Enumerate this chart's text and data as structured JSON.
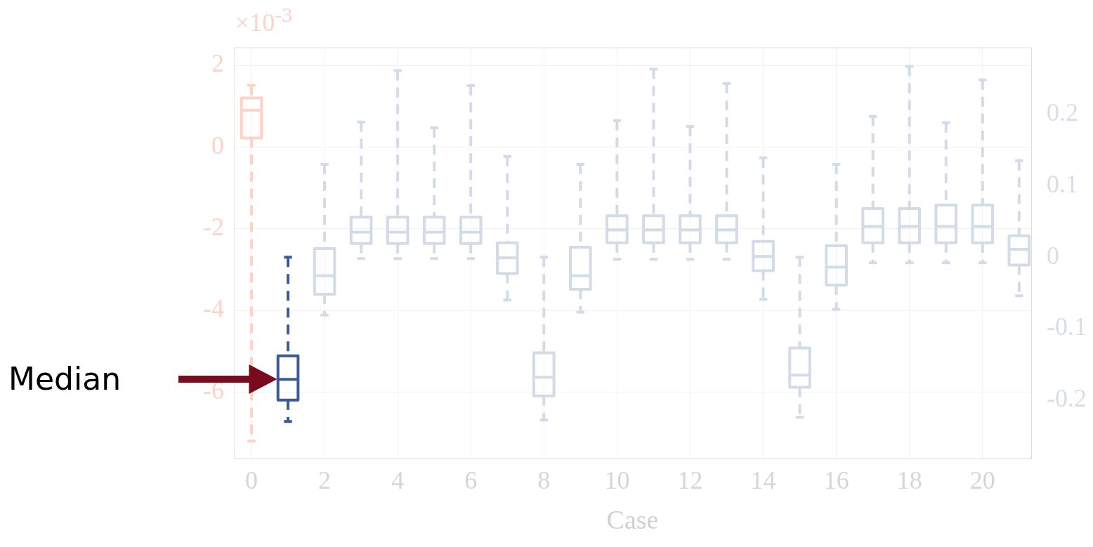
{
  "chart_data": {
    "type": "box",
    "xlabel": "Case",
    "xlim": [
      -0.48,
      21.33
    ],
    "xticks": [
      0,
      2,
      4,
      6,
      8,
      10,
      12,
      14,
      16,
      18,
      20
    ],
    "ylim": [
      -7.63,
      2.43
    ],
    "yticks": [
      -6,
      -4,
      -2,
      0,
      2
    ],
    "y2lim": [
      -0.282,
      0.293
    ],
    "y2ticks": [
      -0.2,
      -0.1,
      0,
      0.1,
      0.2
    ],
    "grid": true,
    "line_style": "dashed",
    "annotations": [
      "×10$^{-3}$",
      "Median"
    ],
    "series": [
      {
        "axis": "y",
        "color": "#fdd3c6",
        "x": [
          0
        ],
        "boxes": [
          {
            "low": -7.2,
            "q1": 0.22,
            "median": 0.9,
            "q3": 1.2,
            "high": 1.51
          }
        ]
      },
      {
        "axis": "y2",
        "colors": [
          "#3a5a98",
          "#d3dbe8",
          "#d3dbe8",
          "#d3dbe8",
          "#d3dbe8",
          "#d3dbe8",
          "#d3dbe8",
          "#d3dbe8",
          "#d3dbe8",
          "#d3dbe8",
          "#d3dbe8",
          "#d3dbe8",
          "#d3dbe8",
          "#d3dbe8",
          "#d3dbe8",
          "#d3dbe8",
          "#d3dbe8",
          "#d3dbe8",
          "#d3dbe8",
          "#d3dbe8",
          "#d3dbe8"
        ],
        "x": [
          1,
          2,
          3,
          4,
          5,
          6,
          7,
          8,
          9,
          10,
          11,
          12,
          13,
          14,
          15,
          16,
          17,
          18,
          19,
          20,
          21
        ],
        "boxes": [
          {
            "low": -0.23,
            "q1": -0.2,
            "median": -0.171,
            "q3": -0.138,
            "high": 0.0
          },
          {
            "low": -0.081,
            "q1": -0.052,
            "median": -0.026,
            "q3": 0.012,
            "high": 0.13
          },
          {
            "low": -0.002,
            "q1": 0.019,
            "median": 0.035,
            "q3": 0.056,
            "high": 0.189
          },
          {
            "low": -0.002,
            "q1": 0.019,
            "median": 0.035,
            "q3": 0.056,
            "high": 0.261
          },
          {
            "low": -0.002,
            "q1": 0.019,
            "median": 0.035,
            "q3": 0.056,
            "high": 0.181
          },
          {
            "low": -0.002,
            "q1": 0.019,
            "median": 0.035,
            "q3": 0.056,
            "high": 0.24
          },
          {
            "low": -0.06,
            "q1": -0.023,
            "median": -0.001,
            "q3": 0.02,
            "high": 0.141
          },
          {
            "low": -0.228,
            "q1": -0.194,
            "median": -0.168,
            "q3": -0.134,
            "high": 0.0
          },
          {
            "low": -0.077,
            "q1": -0.045,
            "median": -0.026,
            "q3": 0.014,
            "high": 0.13
          },
          {
            "low": -0.003,
            "q1": 0.02,
            "median": 0.038,
            "q3": 0.058,
            "high": 0.191
          },
          {
            "low": -0.003,
            "q1": 0.02,
            "median": 0.038,
            "q3": 0.058,
            "high": 0.263
          },
          {
            "low": -0.003,
            "q1": 0.02,
            "median": 0.038,
            "q3": 0.058,
            "high": 0.183
          },
          {
            "low": -0.003,
            "q1": 0.02,
            "median": 0.038,
            "q3": 0.058,
            "high": 0.243
          },
          {
            "low": -0.059,
            "q1": -0.019,
            "median": 0.001,
            "q3": 0.022,
            "high": 0.139
          },
          {
            "low": -0.224,
            "q1": -0.182,
            "median": -0.165,
            "q3": -0.127,
            "high": 0.0
          },
          {
            "low": -0.073,
            "q1": -0.039,
            "median": -0.014,
            "q3": 0.016,
            "high": 0.13
          },
          {
            "low": -0.008,
            "q1": 0.02,
            "median": 0.043,
            "q3": 0.068,
            "high": 0.197
          },
          {
            "low": -0.008,
            "q1": 0.02,
            "median": 0.043,
            "q3": 0.068,
            "high": 0.267
          },
          {
            "low": -0.008,
            "q1": 0.02,
            "median": 0.043,
            "q3": 0.073,
            "high": 0.188
          },
          {
            "low": -0.008,
            "q1": 0.02,
            "median": 0.043,
            "q3": 0.073,
            "high": 0.248
          },
          {
            "low": -0.054,
            "q1": -0.011,
            "median": 0.011,
            "q3": 0.03,
            "high": 0.135
          }
        ]
      }
    ]
  }
}
